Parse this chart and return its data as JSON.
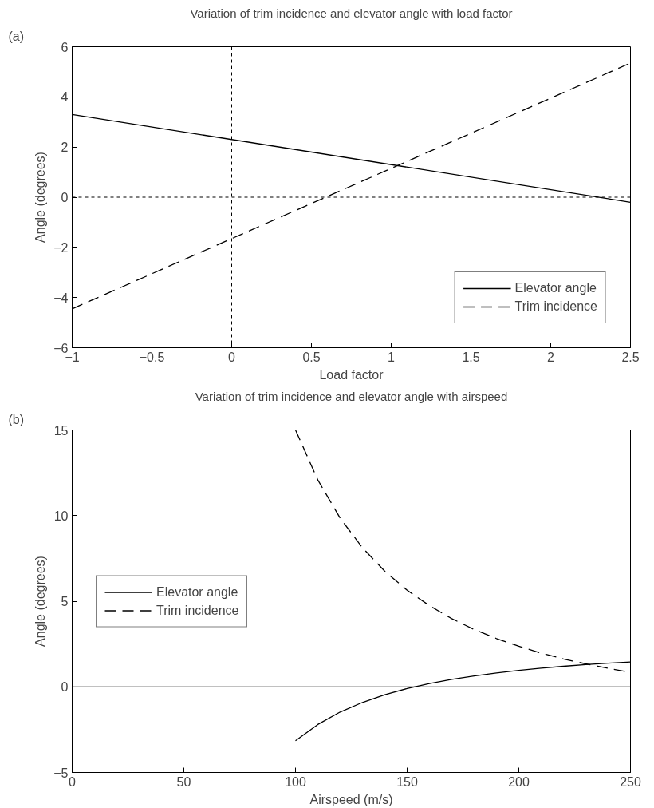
{
  "chart_data": [
    {
      "type": "line",
      "title": "Variation of trim incidence and elevator angle with load factor",
      "xlabel": "Load factor",
      "ylabel": "Angle (degrees)",
      "annotations": [
        "(a)"
      ],
      "series": [
        {
          "name": "Elevator angle",
          "color": "#000000",
          "line_style": "solid",
          "x": [
            -1,
            2.5
          ],
          "values": [
            3.3,
            -0.2
          ]
        },
        {
          "name": "Trim incidence",
          "color": "#000000",
          "line_style": "dashed",
          "x": [
            -1,
            2.5
          ],
          "values": [
            -4.45,
            5.35
          ]
        }
      ],
      "xlim": [
        -1,
        2.5
      ],
      "xticks": [
        {
          "value": -1,
          "label": "−1"
        },
        {
          "value": -0.5,
          "label": "−0.5"
        },
        0,
        0.5,
        1,
        1.5,
        2,
        2.5
      ],
      "ylim": [
        -6,
        6
      ],
      "yticks": [
        {
          "value": -6,
          "label": "−6"
        },
        {
          "value": -4,
          "label": "−4"
        },
        {
          "value": -2,
          "label": "−2"
        },
        0,
        2,
        4,
        6
      ],
      "ref_lines": [
        {
          "axis": "x",
          "value": 0,
          "color": "#000000",
          "line_style": "dotted"
        },
        {
          "axis": "y",
          "value": 0,
          "color": "#000000",
          "line_style": "dotted"
        }
      ],
      "grid": false,
      "legend": "bottom right"
    },
    {
      "type": "line",
      "title": "Variation of trim incidence and elevator angle with airspeed",
      "xlabel": "Airspeed (m/s)",
      "ylabel": "Angle (degrees)",
      "annotations": [
        "(b)"
      ],
      "series": [
        {
          "name": "Elevator angle",
          "color": "#000000",
          "line_style": "solid",
          "x": [
            100,
            110,
            120,
            130,
            140,
            150,
            160,
            170,
            180,
            190,
            200,
            210,
            220,
            230,
            240,
            250
          ],
          "values": [
            -3.15,
            -2.2,
            -1.47,
            -0.91,
            -0.46,
            -0.1,
            0.19,
            0.44,
            0.64,
            0.81,
            0.96,
            1.09,
            1.2,
            1.3,
            1.38,
            1.45
          ]
        },
        {
          "name": "Trim incidence",
          "color": "#000000",
          "line_style": "dashed",
          "x": [
            100,
            110,
            120,
            130,
            140,
            150,
            160,
            170,
            180,
            190,
            200,
            210,
            220,
            230,
            240,
            250
          ],
          "values": [
            15.0,
            12.08,
            9.85,
            8.12,
            6.75,
            5.64,
            4.74,
            3.98,
            3.35,
            2.82,
            2.37,
            1.97,
            1.63,
            1.34,
            1.08,
            0.85
          ]
        }
      ],
      "xlim": [
        0,
        250
      ],
      "xticks": [
        0,
        50,
        100,
        150,
        200,
        250
      ],
      "ylim": [
        -5,
        15
      ],
      "yticks": [
        {
          "value": -5,
          "label": "−5"
        },
        0,
        5,
        10,
        15
      ],
      "ref_lines": [
        {
          "axis": "y",
          "value": 0,
          "color": "#000000",
          "line_style": "solid"
        }
      ],
      "grid": false,
      "legend": "left"
    }
  ]
}
